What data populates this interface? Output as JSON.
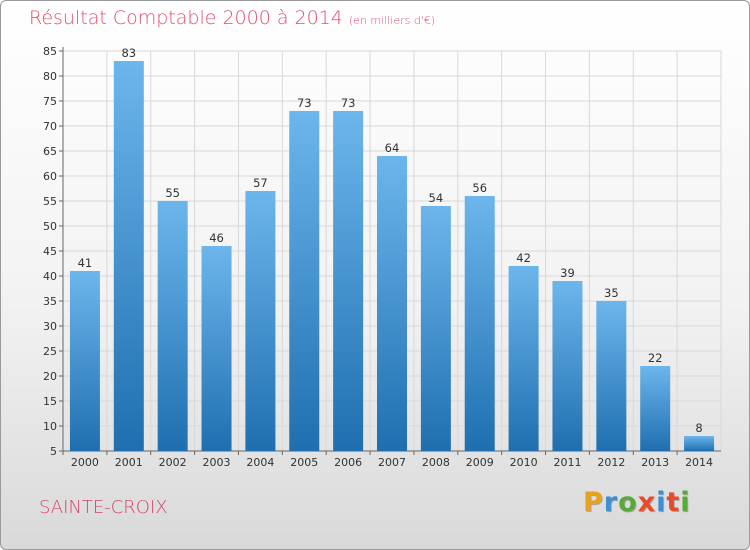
{
  "header": {
    "title": "Résultat Comptable 2000 à 2014",
    "subtitle": "(en milliers d'€)"
  },
  "footer": {
    "commune": "SAINTE-CROIX",
    "logo_text": "Proxiti",
    "logo_colors": [
      "#e8a21e",
      "#3b8fd4",
      "#5aa83a",
      "#e84a2a",
      "#3b8fd4",
      "#e84a2a",
      "#5aa83a"
    ]
  },
  "colors": {
    "bar_light": "#6cb6ec",
    "bar_dark": "#1f6fb0",
    "grid": "#d8d8d8",
    "title": "#e0506e"
  },
  "chart_data": {
    "type": "bar",
    "title": "Résultat Comptable 2000 à 2014",
    "subtitle": "(en milliers d'€)",
    "categories": [
      "2000",
      "2001",
      "2002",
      "2003",
      "2004",
      "2005",
      "2006",
      "2007",
      "2008",
      "2009",
      "2010",
      "2011",
      "2012",
      "2013",
      "2014"
    ],
    "values": [
      41,
      83,
      55,
      46,
      57,
      73,
      73,
      64,
      54,
      56,
      42,
      39,
      35,
      22,
      8
    ],
    "ylim": [
      5,
      85
    ],
    "yticks": [
      5,
      10,
      15,
      20,
      25,
      30,
      35,
      40,
      45,
      50,
      55,
      60,
      65,
      70,
      75,
      80,
      85
    ],
    "grid": true,
    "data_labels": true
  }
}
